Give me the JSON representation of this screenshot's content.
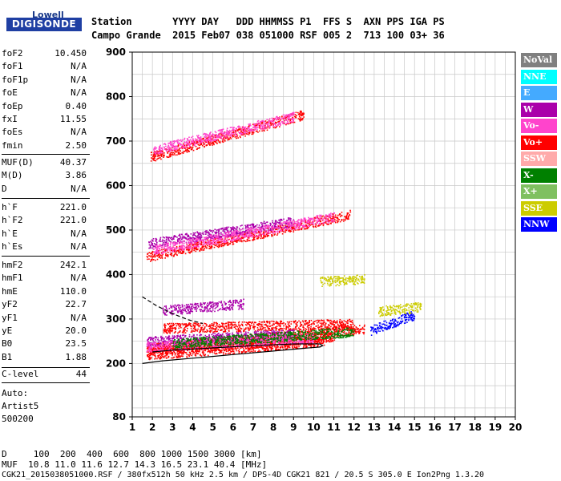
{
  "logo": {
    "line1": "Lowell",
    "line2": "DIGISONDE"
  },
  "header": {
    "row1": "Station       YYYY DAY   DDD HHMMSS P1  FFS S  AXN PPS IGA PS",
    "row2": "Campo Grande  2015 Feb07 038 051000 RSF 005 2  713 100 03+ 36"
  },
  "params_group1": [
    {
      "k": "foF2",
      "v": "10.450"
    },
    {
      "k": "foF1",
      "v": "N/A"
    },
    {
      "k": "foF1p",
      "v": "N/A"
    },
    {
      "k": "foE",
      "v": "N/A"
    },
    {
      "k": "foEp",
      "v": "0.40"
    },
    {
      "k": "fxI",
      "v": "11.55"
    },
    {
      "k": "foEs",
      "v": "N/A"
    },
    {
      "k": "fmin",
      "v": "2.50"
    }
  ],
  "params_group2": [
    {
      "k": "MUF(D)",
      "v": "40.37"
    },
    {
      "k": "M(D)",
      "v": "3.86"
    },
    {
      "k": "D",
      "v": "N/A"
    }
  ],
  "params_group3": [
    {
      "k": "h`F",
      "v": "221.0"
    },
    {
      "k": "h`F2",
      "v": "221.0"
    },
    {
      "k": "h`E",
      "v": "N/A"
    },
    {
      "k": "h`Es",
      "v": "N/A"
    }
  ],
  "params_group4": [
    {
      "k": "hmF2",
      "v": "242.1"
    },
    {
      "k": "hmF1",
      "v": "N/A"
    },
    {
      "k": "hmE",
      "v": "110.0"
    },
    {
      "k": "yF2",
      "v": "22.7"
    },
    {
      "k": "yF1",
      "v": "N/A"
    },
    {
      "k": "yE",
      "v": "20.0"
    },
    {
      "k": "B0",
      "v": "23.5"
    },
    {
      "k": "B1",
      "v": "1.88"
    }
  ],
  "clevel": {
    "k": "C-level",
    "v": "44"
  },
  "scaler": [
    "Auto:",
    "Artist5",
    "500200"
  ],
  "legend": [
    {
      "label": "NoVal",
      "color": "#808080"
    },
    {
      "label": "NNE",
      "color": "#00ffff"
    },
    {
      "label": "E",
      "color": "#44aaff"
    },
    {
      "label": "W",
      "color": "#aa00aa"
    },
    {
      "label": "Vo-",
      "color": "#ff44cc"
    },
    {
      "label": "Vo+",
      "color": "#ff0000"
    },
    {
      "label": "SSW",
      "color": "#ffaaaa"
    },
    {
      "label": "X-",
      "color": "#008000"
    },
    {
      "label": "X+",
      "color": "#7fc060"
    },
    {
      "label": "SSE",
      "color": "#cccc00"
    },
    {
      "label": "NNW",
      "color": "#0000ff"
    }
  ],
  "footer": {
    "distance_row": "D     100  200  400  600  800 1000 1500 3000 [km]",
    "muf_row": "MUF  10.8 11.0 11.6 12.7 14.3 16.5 23.1 40.4 [MHz]",
    "file_row": "CGK21_2015038051000.RSF / 380fx512h 50 kHz 2.5 km / DPS-4D CGK21 821 / 20.5 S 305.0 E Ion2Png 1.3.20"
  },
  "chart_data": {
    "type": "scatter",
    "title": "",
    "xlabel": "",
    "ylabel": "",
    "xlim": [
      1,
      20
    ],
    "ylim": [
      80,
      900
    ],
    "x_ticks": [
      1,
      2,
      3,
      4,
      5,
      6,
      7,
      8,
      9,
      10,
      11,
      12,
      13,
      14,
      15,
      16,
      17,
      18,
      19,
      20
    ],
    "y_ticks": [
      80,
      200,
      300,
      400,
      500,
      600,
      700,
      800,
      900
    ],
    "grid": true,
    "series": [
      {
        "color": "#ff0000",
        "segments": [
          {
            "x": [
              1.7,
              10.5
            ],
            "y": [
              220,
              250
            ]
          },
          {
            "x": [
              1.7,
              11.0
            ],
            "y": [
              228,
              262
            ]
          },
          {
            "x": [
              1.7,
              12.5
            ],
            "y": [
              235,
              278
            ]
          },
          {
            "x": [
              2.5,
              12.0
            ],
            "y": [
              280,
              290
            ]
          },
          {
            "x": [
              1.7,
              11.8
            ],
            "y": [
              440,
              535
            ]
          },
          {
            "x": [
              1.9,
              9.5
            ],
            "y": [
              665,
              760
            ]
          }
        ]
      },
      {
        "color": "#aa00aa",
        "segments": [
          {
            "x": [
              1.7,
              9.0
            ],
            "y": [
              250,
              268
            ]
          },
          {
            "x": [
              2.5,
              6.5
            ],
            "y": [
              320,
              335
            ]
          },
          {
            "x": [
              1.8,
              9.0
            ],
            "y": [
              470,
              520
            ]
          }
        ]
      },
      {
        "color": "#ff44cc",
        "segments": [
          {
            "x": [
              1.7,
              10.0
            ],
            "y": [
              238,
              258
            ]
          },
          {
            "x": [
              2.0,
              11.0
            ],
            "y": [
              455,
              530
            ]
          },
          {
            "x": [
              2.0,
              9.0
            ],
            "y": [
              680,
              755
            ]
          }
        ]
      },
      {
        "color": "#008000",
        "segments": [
          {
            "x": [
              3.0,
              12.0
            ],
            "y": [
              245,
              272
            ]
          }
        ]
      },
      {
        "color": "#0000ff",
        "segments": [
          {
            "x": [
              12.8,
              15.0
            ],
            "y": [
              275,
              310
            ]
          }
        ]
      },
      {
        "color": "#cccc00",
        "segments": [
          {
            "x": [
              10.3,
              12.5
            ],
            "y": [
              385,
              390
            ]
          },
          {
            "x": [
              13.2,
              15.3
            ],
            "y": [
              318,
              328
            ]
          }
        ]
      }
    ],
    "profile_line": {
      "x": [
        1.5,
        2.5,
        4.0,
        6.0,
        8.0,
        9.5,
        10.3,
        10.45,
        10.3,
        9.0,
        7.0,
        5.0,
        3.0,
        2.0
      ],
      "y": [
        200,
        206,
        212,
        220,
        228,
        234,
        237,
        240,
        244,
        244,
        240,
        235,
        230,
        226
      ]
    },
    "profile_dashed": {
      "x": [
        1.5,
        2.2,
        3.0,
        3.8,
        4.5
      ],
      "y": [
        350,
        330,
        312,
        298,
        290
      ]
    }
  }
}
